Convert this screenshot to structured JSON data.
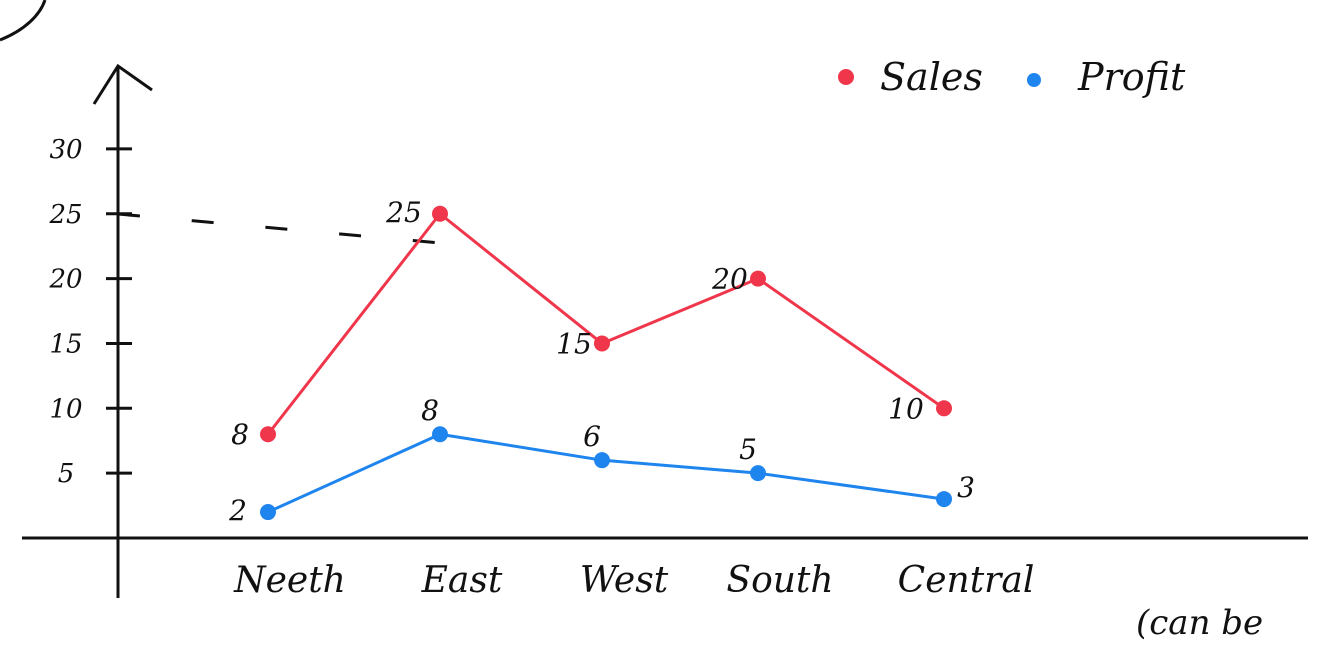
{
  "chart_data": {
    "type": "line",
    "categories": [
      "Neeth",
      "East",
      "West",
      "South",
      "Central"
    ],
    "series": [
      {
        "name": "Sales",
        "values": [
          8,
          25,
          15,
          20,
          10
        ],
        "color": "#f0364b"
      },
      {
        "name": "Profit",
        "values": [
          2,
          8,
          6,
          5,
          3
        ],
        "color": "#1f85ee"
      }
    ],
    "y_ticks": [
      {
        "value": 5,
        "label": "5"
      },
      {
        "value": 10,
        "label": "10"
      },
      {
        "value": 15,
        "label": "15"
      },
      {
        "value": 20,
        "label": "20"
      },
      {
        "value": 25,
        "label": "25"
      },
      {
        "value": 30,
        "label": "30"
      }
    ],
    "ylim": [
      0,
      33
    ],
    "legend": "top-right",
    "grid": false
  },
  "note": "(can be"
}
